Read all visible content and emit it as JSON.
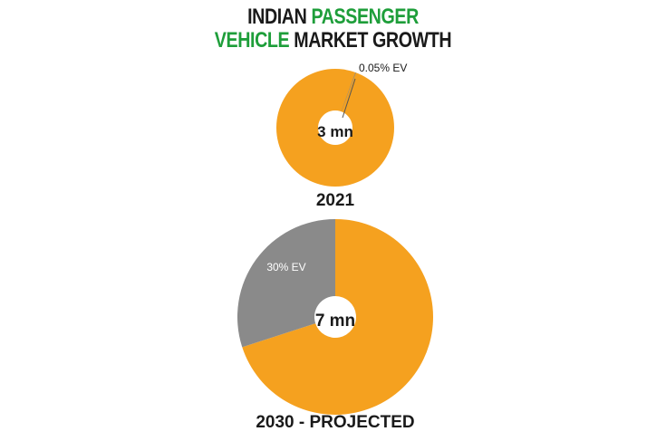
{
  "title": {
    "line1_part1": "INDIAN ",
    "line1_part2": "PASSENGER",
    "line2_part1": "VEHICLE",
    "line2_part2": " MARKET GROWTH"
  },
  "colors": {
    "title_black": "#1a1a1a",
    "title_green": "#1e9e3a",
    "ice_orange": "#f5a11f",
    "ev_gray": "#8a8a8a"
  },
  "chart_data": [
    {
      "type": "pie",
      "year_label": "2021",
      "center_label": "3 mn",
      "total_mn": 3,
      "slices": [
        {
          "label": "0.05% EV",
          "value": 0.05,
          "color": "#8a8a8a"
        },
        {
          "label": "",
          "value": 99.95,
          "color": "#f5a11f"
        }
      ]
    },
    {
      "type": "pie",
      "year_label": "2030 - PROJECTED",
      "center_label": "7 mn",
      "total_mn": 7,
      "slices": [
        {
          "label": "30% EV",
          "value": 30,
          "color": "#8a8a8a"
        },
        {
          "label": "",
          "value": 70,
          "color": "#f5a11f"
        }
      ]
    }
  ]
}
